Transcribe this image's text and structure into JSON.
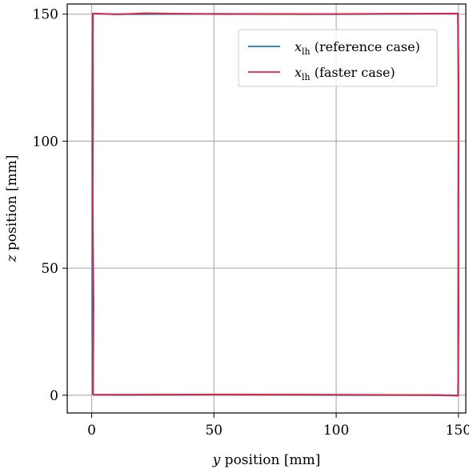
{
  "chart_data": {
    "type": "line",
    "title": "",
    "xlabel_var": "y",
    "xlabel_rest": " position [mm]",
    "ylabel_var": "z",
    "ylabel_rest": " position [mm]",
    "xlim": [
      -10,
      153
    ],
    "ylim": [
      -7,
      154
    ],
    "xticks": [
      0,
      50,
      100,
      150
    ],
    "yticks": [
      0,
      50,
      100,
      150
    ],
    "grid": true,
    "legend": {
      "placement": "top-right",
      "entries": [
        {
          "var": "x",
          "sub": "lh",
          "rest": " (reference case)"
        },
        {
          "var": "x",
          "sub": "lh",
          "rest": " (faster case)"
        }
      ]
    },
    "series": [
      {
        "label_index": 0,
        "color": "#1f77b4",
        "x": [
          0.5,
          0.3,
          0.4,
          0.3,
          0.5,
          10,
          50,
          100,
          149.8,
          150,
          150,
          149.9,
          149.9,
          140,
          100,
          50,
          10,
          0.5
        ],
        "y": [
          0.2,
          37,
          75,
          112,
          150.2,
          150.0,
          150.1,
          150.0,
          150.2,
          120,
          75,
          30,
          -0.1,
          0.0,
          0.1,
          0.2,
          0.1,
          0.2
        ]
      },
      {
        "label_index": 1,
        "color": "#e8223f",
        "x": [
          0.6,
          0.8,
          0.4,
          0.6,
          0.5,
          10,
          22,
          50,
          100,
          149.8,
          150.1,
          149.9,
          150.1,
          149.8,
          140,
          100,
          50,
          10,
          0.6
        ],
        "y": [
          0.1,
          37,
          75,
          112,
          150.3,
          149.9,
          150.4,
          150.0,
          150.1,
          150.3,
          120,
          75,
          30,
          -0.2,
          0.1,
          0.2,
          0.3,
          0.2,
          0.1
        ]
      }
    ]
  }
}
